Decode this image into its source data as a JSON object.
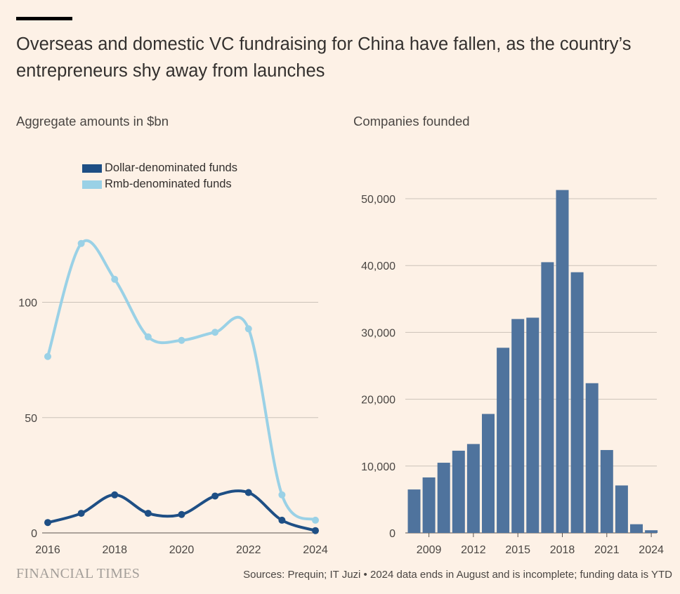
{
  "header": {
    "title": "Overseas and domestic VC fundraising for China have fallen, as the country’s entrepreneurs shy away from launches"
  },
  "colors": {
    "background": "#fdf1e6",
    "dollar": "#1e4f85",
    "rmb": "#9ad1e6",
    "bars": "#4f739d",
    "gridline": "#cbc2b9"
  },
  "footer": {
    "logo": "FINANCIAL TIMES",
    "sources": "Sources: Prequin; IT Juzi • 2024 data ends in August and is incomplete; funding data is YTD"
  },
  "chart_data": [
    {
      "type": "line",
      "title": "Aggregate amounts in $bn",
      "x": [
        2016,
        2017,
        2018,
        2019,
        2020,
        2021,
        2022,
        2023,
        2024
      ],
      "series": [
        {
          "name": "Dollar-denominated funds",
          "color": "#1e4f85",
          "values": [
            4.5,
            8.5,
            16.5,
            8.5,
            8,
            16,
            17.5,
            5.5,
            1
          ]
        },
        {
          "name": "Rmb-denominated funds",
          "color": "#9ad1e6",
          "values": [
            76.5,
            125.5,
            110,
            85,
            83.5,
            87,
            88.5,
            16.5,
            5.5
          ]
        }
      ],
      "xticks": [
        "2016",
        "2018",
        "2020",
        "2022",
        "2024"
      ],
      "yticks": [
        "0",
        "50",
        "100"
      ],
      "ylim": [
        0,
        130
      ],
      "legend": "top-left",
      "grid": true
    },
    {
      "type": "bar",
      "title": "Companies founded",
      "categories": [
        2008,
        2009,
        2010,
        2011,
        2012,
        2013,
        2014,
        2015,
        2016,
        2017,
        2018,
        2019,
        2020,
        2021,
        2022,
        2023,
        2024
      ],
      "values": [
        6500,
        8300,
        10500,
        12300,
        13300,
        17800,
        27700,
        32000,
        32200,
        40500,
        51300,
        39000,
        22400,
        12400,
        7100,
        1300,
        400
      ],
      "xticks": [
        "2009",
        "2012",
        "2015",
        "2018",
        "2021",
        "2024"
      ],
      "yticks": [
        "0",
        "10,000",
        "20,000",
        "30,000",
        "40,000",
        "50,000"
      ],
      "ylim": [
        0,
        55000
      ],
      "grid": true
    }
  ]
}
